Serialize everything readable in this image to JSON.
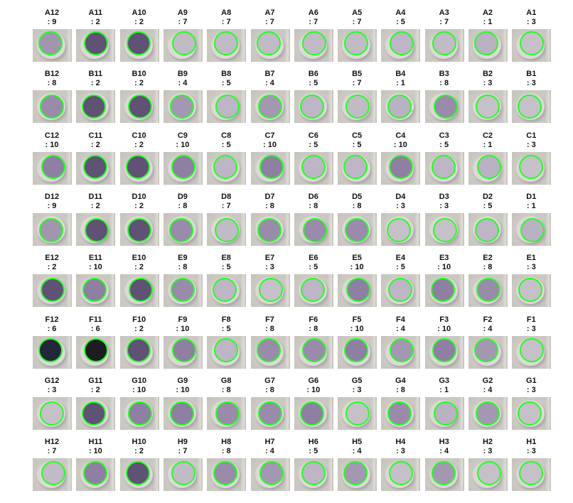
{
  "colors": {
    "circle_outline": "#22ff22",
    "background": "#ffffff",
    "score_shades": {
      "1": "#b8b2c2",
      "2": "#5f5275",
      "3": "#c6c1c8",
      "4": "#a497b2",
      "5": "#beb5c6",
      "6": "#2a2538",
      "7": "#c1bbc6",
      "8": "#9a8bab",
      "9": "#a296ae",
      "10": "#8f7fa2"
    },
    "special_wells": {
      "F12": "#24263a",
      "F11": "#1c1c22"
    }
  },
  "rows": [
    {
      "row": "A",
      "wells": [
        {
          "label": "A12",
          "score": ": 9"
        },
        {
          "label": "A11",
          "score": ": 2"
        },
        {
          "label": "A10",
          "score": ": 2"
        },
        {
          "label": "A9",
          "score": ": 7"
        },
        {
          "label": "A8",
          "score": ": 7"
        },
        {
          "label": "A7",
          "score": ": 7"
        },
        {
          "label": "A6",
          "score": ": 7"
        },
        {
          "label": "A5",
          "score": ": 7"
        },
        {
          "label": "A4",
          "score": ": 5"
        },
        {
          "label": "A3",
          "score": ": 7"
        },
        {
          "label": "A2",
          "score": ": 1"
        },
        {
          "label": "A1",
          "score": ": 3"
        }
      ]
    },
    {
      "row": "B",
      "wells": [
        {
          "label": "B12",
          "score": ": 8"
        },
        {
          "label": "B11",
          "score": ": 2"
        },
        {
          "label": "B10",
          "score": ": 2"
        },
        {
          "label": "B9",
          "score": ": 4"
        },
        {
          "label": "B8",
          "score": ": 5"
        },
        {
          "label": "B7",
          "score": ": 4"
        },
        {
          "label": "B6",
          "score": ": 5"
        },
        {
          "label": "B5",
          "score": ": 7"
        },
        {
          "label": "B4",
          "score": ": 1"
        },
        {
          "label": "B3",
          "score": ": 8"
        },
        {
          "label": "B2",
          "score": ": 3"
        },
        {
          "label": "B1",
          "score": ": 3"
        }
      ]
    },
    {
      "row": "C",
      "wells": [
        {
          "label": "C12",
          "score": ": 10"
        },
        {
          "label": "C11",
          "score": ": 2"
        },
        {
          "label": "C10",
          "score": ": 2"
        },
        {
          "label": "C9",
          "score": ": 10"
        },
        {
          "label": "C8",
          "score": ": 5"
        },
        {
          "label": "C7",
          "score": ": 10"
        },
        {
          "label": "C6",
          "score": ": 5"
        },
        {
          "label": "C5",
          "score": ": 5"
        },
        {
          "label": "C4",
          "score": ": 10"
        },
        {
          "label": "C3",
          "score": ": 5"
        },
        {
          "label": "C2",
          "score": ": 1"
        },
        {
          "label": "C1",
          "score": ": 3"
        }
      ]
    },
    {
      "row": "D",
      "wells": [
        {
          "label": "D12",
          "score": ": 9"
        },
        {
          "label": "D11",
          "score": ": 2"
        },
        {
          "label": "D10",
          "score": ": 2"
        },
        {
          "label": "D9",
          "score": ": 8"
        },
        {
          "label": "D8",
          "score": ": 7"
        },
        {
          "label": "D7",
          "score": ": 8"
        },
        {
          "label": "D6",
          "score": ": 8"
        },
        {
          "label": "D5",
          "score": ": 8"
        },
        {
          "label": "D4",
          "score": ": 3"
        },
        {
          "label": "D3",
          "score": ": 3"
        },
        {
          "label": "D2",
          "score": ": 5"
        },
        {
          "label": "D1",
          "score": ": 1"
        }
      ]
    },
    {
      "row": "E",
      "wells": [
        {
          "label": "E12",
          "score": ": 2"
        },
        {
          "label": "E11",
          "score": ": 10"
        },
        {
          "label": "E10",
          "score": ": 2"
        },
        {
          "label": "E9",
          "score": ": 8"
        },
        {
          "label": "E8",
          "score": ": 5"
        },
        {
          "label": "E7",
          "score": ": 3"
        },
        {
          "label": "E6",
          "score": ": 5"
        },
        {
          "label": "E5",
          "score": ": 10"
        },
        {
          "label": "E4",
          "score": ": 5"
        },
        {
          "label": "E3",
          "score": ": 10"
        },
        {
          "label": "E2",
          "score": ": 8"
        },
        {
          "label": "E1",
          "score": ": 3"
        }
      ]
    },
    {
      "row": "F",
      "wells": [
        {
          "label": "F12",
          "score": ": 6"
        },
        {
          "label": "F11",
          "score": ": 6"
        },
        {
          "label": "F10",
          "score": ": 2"
        },
        {
          "label": "F9",
          "score": ": 10"
        },
        {
          "label": "F8",
          "score": ": 5"
        },
        {
          "label": "F7",
          "score": ": 8"
        },
        {
          "label": "F6",
          "score": ": 8"
        },
        {
          "label": "F5",
          "score": ": 10"
        },
        {
          "label": "F4",
          "score": ": 4"
        },
        {
          "label": "F3",
          "score": ": 10"
        },
        {
          "label": "F2",
          "score": ": 4"
        },
        {
          "label": "F1",
          "score": ": 3"
        }
      ]
    },
    {
      "row": "G",
      "wells": [
        {
          "label": "G12",
          "score": ": 3"
        },
        {
          "label": "G11",
          "score": ": 2"
        },
        {
          "label": "G10",
          "score": ": 10"
        },
        {
          "label": "G9",
          "score": ": 10"
        },
        {
          "label": "G8",
          "score": ": 8"
        },
        {
          "label": "G7",
          "score": ": 8"
        },
        {
          "label": "G6",
          "score": ": 10"
        },
        {
          "label": "G5",
          "score": ": 3"
        },
        {
          "label": "G4",
          "score": ": 8"
        },
        {
          "label": "G3",
          "score": ": 1"
        },
        {
          "label": "G2",
          "score": ": 4"
        },
        {
          "label": "G1",
          "score": ": 3"
        }
      ]
    },
    {
      "row": "H",
      "wells": [
        {
          "label": "H12",
          "score": ": 7"
        },
        {
          "label": "H11",
          "score": ": 10"
        },
        {
          "label": "H10",
          "score": ": 2"
        },
        {
          "label": "H9",
          "score": ": 7"
        },
        {
          "label": "H8",
          "score": ": 8"
        },
        {
          "label": "H7",
          "score": ": 4"
        },
        {
          "label": "H6",
          "score": ": 5"
        },
        {
          "label": "H5",
          "score": ": 4"
        },
        {
          "label": "H4",
          "score": ": 3"
        },
        {
          "label": "H3",
          "score": ": 4"
        },
        {
          "label": "H2",
          "score": ": 3"
        },
        {
          "label": "H1",
          "score": ": 3"
        }
      ]
    }
  ]
}
